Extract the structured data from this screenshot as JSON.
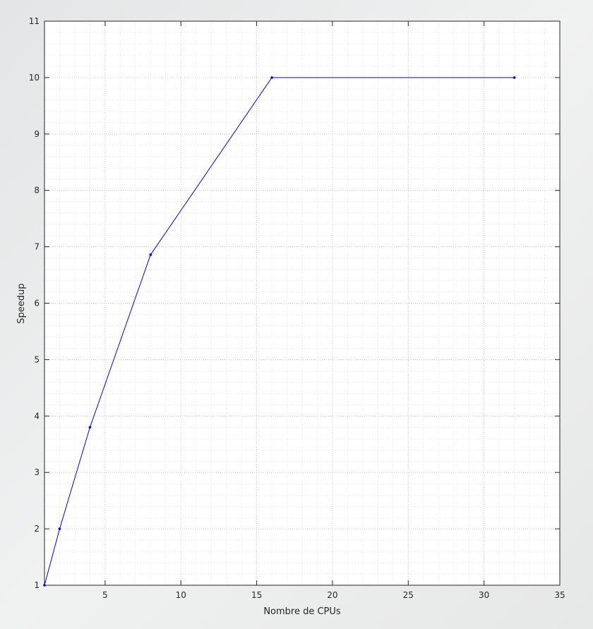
{
  "chart_data": {
    "type": "line",
    "xlabel": "Nombre de CPUs",
    "ylabel": "Speedup",
    "xlim": [
      1,
      35
    ],
    "ylim": [
      1,
      11
    ],
    "x_ticks": [
      5,
      10,
      15,
      20,
      25,
      30,
      35
    ],
    "y_ticks": [
      1,
      2,
      3,
      4,
      5,
      6,
      7,
      8,
      9,
      10,
      11
    ],
    "grid": true,
    "minor_grid": true,
    "series": [
      {
        "color": "#0000ff",
        "x": [
          1,
          2,
          4,
          8,
          16,
          32
        ],
        "y": [
          1,
          2,
          3.8,
          6.86,
          10,
          10
        ]
      }
    ]
  }
}
